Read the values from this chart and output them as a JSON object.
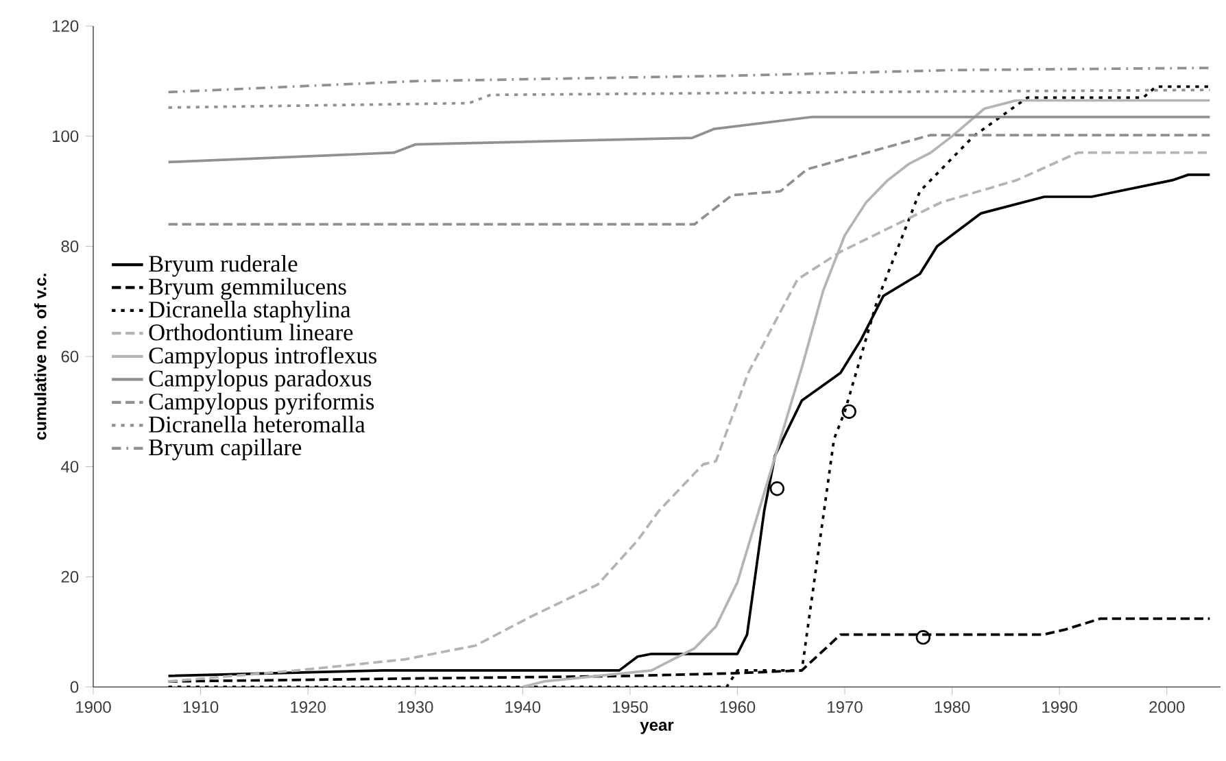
{
  "chart_data": {
    "type": "line",
    "xlabel": "year",
    "ylabel": "cumulative no. of v.c.",
    "xlim": [
      1900,
      2005
    ],
    "ylim": [
      0,
      120
    ],
    "xticks": [
      1900,
      1910,
      1920,
      1930,
      1940,
      1950,
      1960,
      1970,
      1980,
      1990,
      2000
    ],
    "yticks": [
      0,
      20,
      40,
      60,
      80,
      100,
      120
    ],
    "grid": false,
    "legend": "left",
    "marker": "none",
    "series": [
      {
        "name": "Bryum ruderale",
        "color": "#000000",
        "line_style": "solid",
        "x": [
          1907,
          1927,
          1949,
          1950.7,
          1952,
          1960,
          1960.9,
          1962.5,
          1963.5,
          1966,
          1969.6,
          1971.5,
          1973.6,
          1977,
          1978.6,
          1982.7,
          1988.6,
          1993,
          2000.5,
          2002,
          2004
        ],
        "values": [
          2,
          3,
          3,
          5.5,
          6,
          6,
          9.5,
          32,
          42,
          52,
          57,
          63,
          71,
          75,
          80,
          86,
          89,
          89,
          92,
          93,
          93
        ]
      },
      {
        "name": "Bryum gemmilucens",
        "color": "#000000",
        "line_style": "dashed",
        "x": [
          1907,
          1950,
          1960,
          1966,
          1969.6,
          1988.5,
          1990.5,
          1993.8,
          2004
        ],
        "values": [
          1,
          2,
          2.5,
          3,
          9.5,
          9.5,
          10.4,
          12.4,
          12.4
        ]
      },
      {
        "name": "Dicranella staphylina",
        "color": "#000000",
        "line_style": "dotted",
        "x": [
          1907,
          1959,
          1960,
          1966,
          1969,
          1970,
          1973,
          1977,
          1982,
          1987,
          1997.8,
          1999,
          2004
        ],
        "values": [
          0,
          0,
          3,
          3,
          45,
          50,
          70,
          90,
          100,
          107,
          107,
          109,
          109
        ]
      },
      {
        "name": "Orthodontium lineare",
        "color": "#b4b4b4",
        "line_style": "dashed",
        "x": [
          1907,
          1919,
          1929,
          1935.6,
          1940.7,
          1947,
          1950.7,
          1952.7,
          1956.8,
          1958,
          1961,
          1965.6,
          1969.6,
          1979,
          1986,
          1991.7,
          2004
        ],
        "values": [
          1,
          3,
          5,
          7.5,
          12.7,
          18.6,
          26.6,
          32,
          40.4,
          41,
          57,
          74,
          79,
          88,
          92,
          97,
          97
        ]
      },
      {
        "name": "Campylopus introflexus",
        "color": "#b4b4b4",
        "line_style": "solid",
        "x": [
          1940,
          1942,
          1952,
          1956,
          1958,
          1960,
          1962,
          1964,
          1966,
          1968,
          1970,
          1972,
          1974,
          1976,
          1978,
          1980,
          1983,
          1986,
          2004
        ],
        "values": [
          0,
          1,
          3,
          7,
          11,
          19,
          32,
          45,
          58,
          72,
          82,
          88,
          92,
          95,
          97,
          100,
          105,
          106.5,
          106.5
        ]
      },
      {
        "name": "Campylopus paradoxus",
        "color": "#909090",
        "line_style": "solid",
        "x": [
          1907,
          1928,
          1930,
          1955.8,
          1957.8,
          1967,
          2004
        ],
        "values": [
          95.3,
          97,
          98.5,
          99.7,
          101.3,
          103.5,
          103.5
        ]
      },
      {
        "name": "Campylopus pyriformis",
        "color": "#909090",
        "line_style": "dashed",
        "x": [
          1907,
          1956,
          1959.5,
          1964,
          1966.5,
          1978,
          2004
        ],
        "values": [
          84,
          84,
          89.3,
          90,
          94,
          100.2,
          100.2
        ]
      },
      {
        "name": "Dicranella heteromalla",
        "color": "#909090",
        "line_style": "dotted",
        "x": [
          1907,
          1935,
          1937,
          1970,
          2004
        ],
        "values": [
          105.2,
          106,
          107.5,
          108,
          108.4
        ]
      },
      {
        "name": "Bryum capillare",
        "color": "#909090",
        "line_style": "dashdot",
        "x": [
          1907,
          1930,
          1960,
          1980,
          2004
        ],
        "values": [
          108,
          110,
          111,
          112,
          112.4
        ]
      },
      {
        "type": "scatter",
        "color": "#000000",
        "marker": "circle",
        "x": [
          1963.7,
          1970.4,
          1977.3
        ],
        "values": [
          36,
          50,
          9
        ]
      }
    ]
  }
}
